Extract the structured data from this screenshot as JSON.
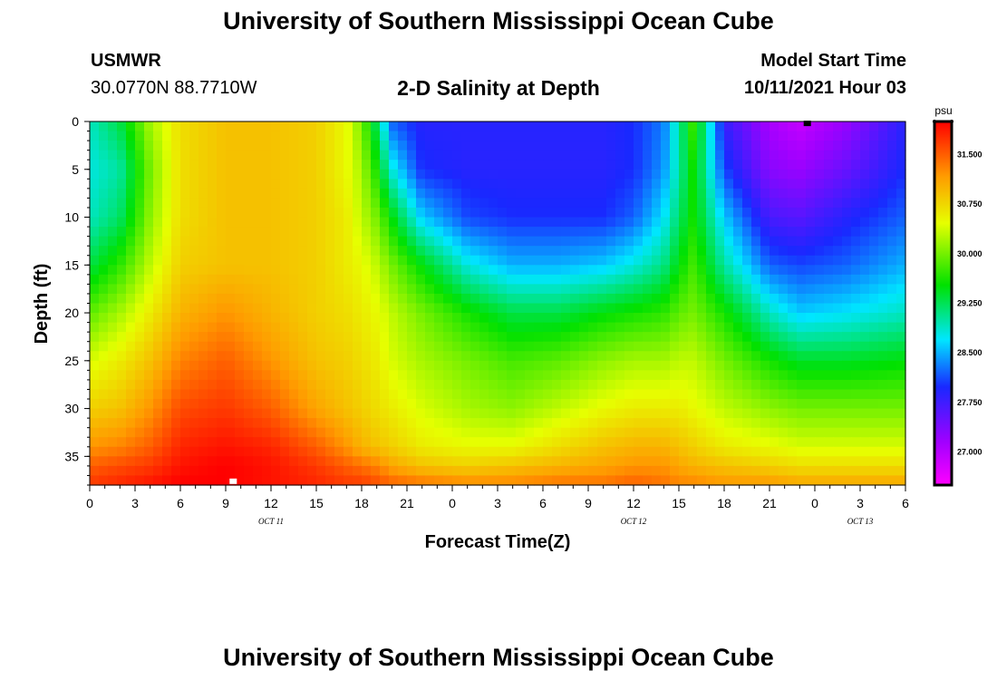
{
  "header": {
    "title": "University of Southern Mississippi Ocean Cube",
    "station_id": "USMWR",
    "coords": "30.0770N  88.7710W",
    "plot_title": "2-D Salinity at Depth",
    "model_label": "Model Start Time",
    "model_time": "10/11/2021 Hour 03"
  },
  "footer": {
    "title": "University of Southern Mississippi Ocean Cube"
  },
  "chart_data": {
    "type": "heatmap",
    "title": "2-D Salinity at Depth",
    "xlabel": "Forecast Time(Z)",
    "ylabel": "Depth (ft)",
    "xlim": [
      0,
      54
    ],
    "ylim": [
      0,
      38
    ],
    "y_inverted": true,
    "x_ticks": [
      0,
      3,
      6,
      9,
      12,
      15,
      18,
      21,
      24,
      27,
      30,
      33,
      36,
      39,
      42,
      45,
      48,
      51,
      54
    ],
    "x_tick_labels": [
      "0",
      "3",
      "6",
      "9",
      "12",
      "15",
      "18",
      "21",
      "0",
      "3",
      "6",
      "9",
      "12",
      "15",
      "18",
      "21",
      "0",
      "3",
      "6"
    ],
    "y_ticks": [
      0,
      5,
      10,
      15,
      20,
      25,
      30,
      35
    ],
    "y_tick_labels": [
      "0",
      "5",
      "10",
      "15",
      "20",
      "25",
      "30",
      "35"
    ],
    "day_labels": [
      {
        "x": 12,
        "label": "OCT 11"
      },
      {
        "x": 36,
        "label": "OCT 12"
      },
      {
        "x": 51,
        "label": "OCT 13"
      }
    ],
    "colorbar": {
      "unit": "psu",
      "min": 26.5,
      "max": 32.0,
      "tick_values": [
        31.5,
        30.75,
        30.0,
        29.25,
        28.5,
        27.75,
        27.0
      ],
      "tick_labels": [
        "31.500",
        "30.750",
        "30.000",
        "29.250",
        "28.500",
        "27.750",
        "27.000"
      ]
    },
    "markers": [
      {
        "x": 47.5,
        "depth": 0.2,
        "color": "#000000",
        "note": "minimum"
      },
      {
        "x": 9.5,
        "depth": 37.6,
        "color": "#ffffff",
        "note": "maximum"
      }
    ],
    "salinity_profiles": {
      "depth_nodes": [
        0,
        5,
        10,
        15,
        20,
        25,
        30,
        34,
        36,
        38
      ],
      "profiles": [
        {
          "x": 0,
          "values": [
            28.9,
            28.8,
            28.9,
            29.3,
            29.9,
            30.4,
            30.8,
            31.2,
            31.5,
            31.7
          ]
        },
        {
          "x": 2,
          "values": [
            29.3,
            29.0,
            29.2,
            29.7,
            30.2,
            30.6,
            30.9,
            31.3,
            31.6,
            31.8
          ]
        },
        {
          "x": 4,
          "values": [
            30.2,
            30.0,
            30.1,
            30.3,
            30.6,
            30.9,
            31.2,
            31.5,
            31.7,
            31.9
          ]
        },
        {
          "x": 6,
          "values": [
            30.7,
            30.7,
            30.7,
            30.8,
            31.0,
            31.3,
            31.6,
            31.8,
            31.9,
            32.0
          ]
        },
        {
          "x": 9,
          "values": [
            30.9,
            30.9,
            30.9,
            30.9,
            31.2,
            31.5,
            31.7,
            31.9,
            32.0,
            32.0
          ]
        },
        {
          "x": 12,
          "values": [
            30.9,
            30.9,
            30.9,
            30.9,
            31.0,
            31.2,
            31.5,
            31.8,
            31.9,
            31.9
          ]
        },
        {
          "x": 15,
          "values": [
            30.8,
            30.8,
            30.8,
            30.8,
            30.8,
            30.9,
            31.1,
            31.5,
            31.7,
            31.8
          ]
        },
        {
          "x": 17,
          "values": [
            30.5,
            30.5,
            30.6,
            30.6,
            30.7,
            30.8,
            30.9,
            31.2,
            31.5,
            31.7
          ]
        },
        {
          "x": 18,
          "values": [
            30.0,
            30.2,
            30.3,
            30.5,
            30.6,
            30.7,
            30.8,
            31.0,
            31.4,
            31.7
          ]
        },
        {
          "x": 19,
          "values": [
            29.2,
            29.6,
            30.0,
            30.3,
            30.5,
            30.6,
            30.7,
            30.9,
            31.3,
            31.6
          ]
        },
        {
          "x": 20,
          "values": [
            28.2,
            28.8,
            29.5,
            30.0,
            30.3,
            30.4,
            30.6,
            30.8,
            31.1,
            31.5
          ]
        },
        {
          "x": 22,
          "values": [
            27.9,
            28.0,
            28.6,
            29.5,
            30.0,
            30.2,
            30.4,
            30.6,
            30.9,
            31.4
          ]
        },
        {
          "x": 25,
          "values": [
            27.9,
            27.9,
            28.1,
            28.8,
            29.6,
            30.0,
            30.2,
            30.5,
            30.8,
            31.3
          ]
        },
        {
          "x": 28,
          "values": [
            27.9,
            27.9,
            28.0,
            28.5,
            29.3,
            29.8,
            30.1,
            30.5,
            30.9,
            31.3
          ]
        },
        {
          "x": 31,
          "values": [
            27.9,
            27.9,
            28.0,
            28.5,
            29.3,
            29.9,
            30.3,
            30.7,
            31.0,
            31.4
          ]
        },
        {
          "x": 34,
          "values": [
            27.9,
            27.9,
            28.0,
            28.6,
            29.5,
            30.1,
            30.5,
            30.9,
            31.1,
            31.4
          ]
        },
        {
          "x": 36,
          "values": [
            28.0,
            28.0,
            28.2,
            28.8,
            29.6,
            30.2,
            30.6,
            31.0,
            31.2,
            31.5
          ]
        },
        {
          "x": 38,
          "values": [
            28.3,
            28.4,
            28.7,
            29.1,
            29.7,
            30.2,
            30.6,
            31.0,
            31.2,
            31.4
          ]
        },
        {
          "x": 39,
          "values": [
            29.0,
            29.0,
            29.2,
            29.5,
            29.9,
            30.3,
            30.6,
            30.9,
            31.1,
            31.3
          ]
        },
        {
          "x": 40,
          "values": [
            29.8,
            29.6,
            29.6,
            29.8,
            30.0,
            30.3,
            30.5,
            30.8,
            31.0,
            31.3
          ]
        },
        {
          "x": 42,
          "values": [
            27.8,
            28.1,
            28.6,
            29.0,
            29.6,
            30.0,
            30.3,
            30.6,
            30.9,
            31.2
          ]
        },
        {
          "x": 45,
          "values": [
            27.1,
            27.3,
            27.7,
            28.2,
            28.9,
            29.6,
            30.1,
            30.5,
            30.8,
            31.2
          ]
        },
        {
          "x": 47,
          "values": [
            26.9,
            27.2,
            27.6,
            28.1,
            28.6,
            29.4,
            30.0,
            30.4,
            30.7,
            31.1
          ]
        },
        {
          "x": 50,
          "values": [
            27.2,
            27.5,
            27.9,
            28.2,
            28.7,
            29.4,
            30.0,
            30.4,
            30.7,
            31.1
          ]
        },
        {
          "x": 54,
          "values": [
            27.9,
            28.0,
            28.2,
            28.5,
            28.9,
            29.5,
            30.0,
            30.4,
            30.7,
            31.1
          ]
        }
      ]
    }
  }
}
